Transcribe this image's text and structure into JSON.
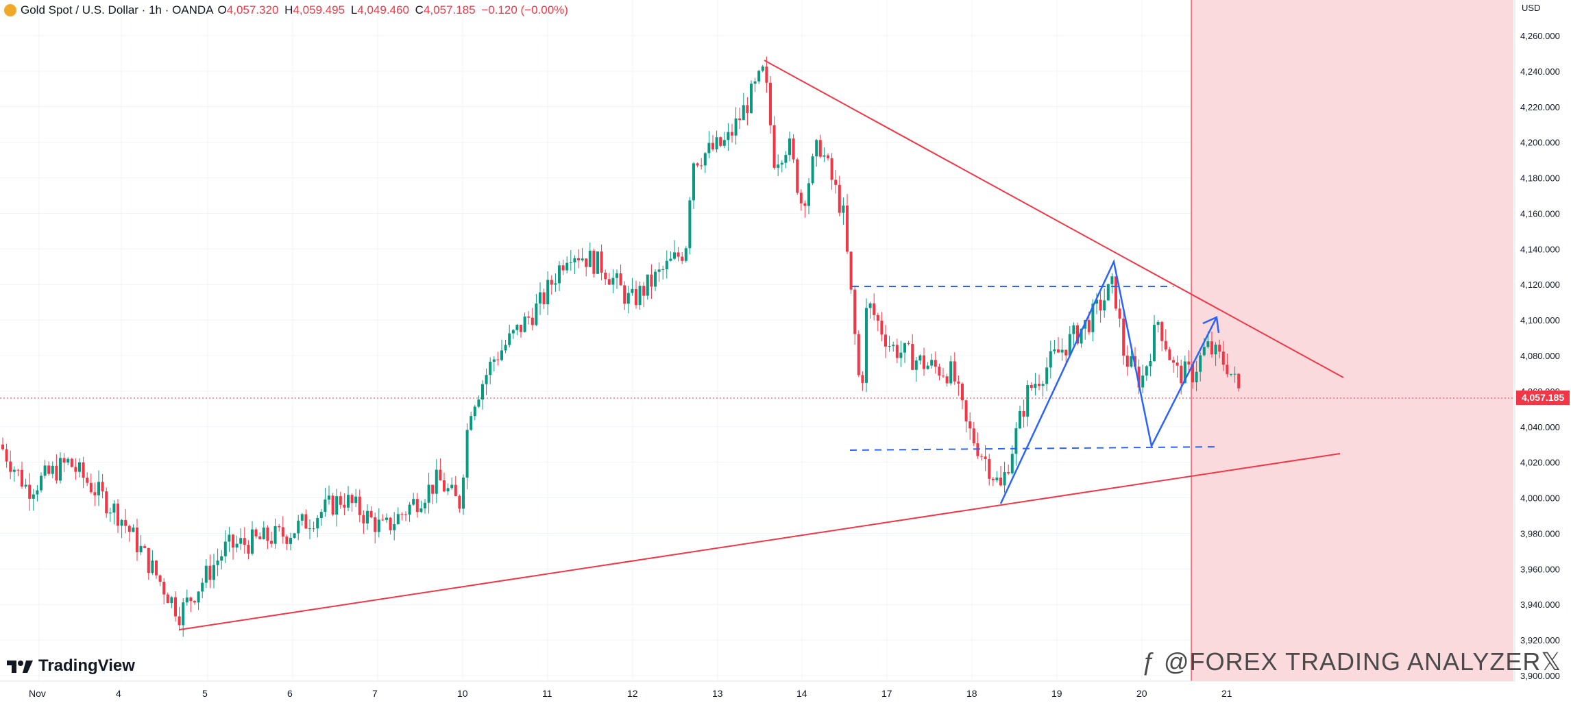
{
  "header": {
    "title": "Gold Spot / U.S. Dollar · 1h · OANDA",
    "ohlc": [
      {
        "key": "O",
        "value": "4,057.320"
      },
      {
        "key": "H",
        "value": "4,059.495"
      },
      {
        "key": "L",
        "value": "4,049.460"
      },
      {
        "key": "C",
        "value": "4,057.185"
      }
    ],
    "change": "−0.120 (−0.00%)"
  },
  "axis": {
    "currency": "USD",
    "price_labels": [
      "4,260.000",
      "4,240.000",
      "4,220.000",
      "4,200.000",
      "4,180.000",
      "4,160.000",
      "4,140.000",
      "4,120.000",
      "4,100.000",
      "4,080.000",
      "4,060.000",
      "4,040.000",
      "4,020.000",
      "4,000.000",
      "3,980.000",
      "3,960.000",
      "3,940.000",
      "3,920.000",
      "3,900.000"
    ],
    "time_labels": [
      "Nov",
      "4",
      "5",
      "6",
      "7",
      "10",
      "11",
      "12",
      "13",
      "14",
      "17",
      "18",
      "19",
      "20",
      "21"
    ]
  },
  "last_price": "4,057.185",
  "branding": {
    "logo_text": "TradingView",
    "watermark": "@FOREX TRADING ANALYZER"
  },
  "colors": {
    "bull": "#089981",
    "bear": "#f23645",
    "trendline": "#f23645",
    "pattern": "#2962ff",
    "zone": "#fbdadd"
  },
  "chart_data": {
    "type": "candlestick",
    "symbol": "XAUUSD",
    "interval": "1h",
    "y_range": [
      3900,
      4270
    ],
    "x_categories": [
      "Nov",
      "4",
      "5",
      "6",
      "7",
      "10",
      "11",
      "12",
      "13",
      "14",
      "17",
      "18",
      "19",
      "20",
      "21"
    ],
    "daily_path": [
      {
        "day": "Nov",
        "open": 4030,
        "high": 4035,
        "low": 3962,
        "close": 4012
      },
      {
        "day": "4",
        "open": 4012,
        "high": 4030,
        "low": 3965,
        "close": 3988
      },
      {
        "day": "5",
        "open": 3988,
        "high": 3995,
        "low": 3926,
        "close": 3975
      },
      {
        "day": "6",
        "open": 3975,
        "high": 3995,
        "low": 3965,
        "close": 3985
      },
      {
        "day": "7",
        "open": 3985,
        "high": 4020,
        "low": 3968,
        "close": 4010
      },
      {
        "day": "10",
        "open": 4010,
        "high": 4095,
        "low": 3985,
        "close": 4090
      },
      {
        "day": "11",
        "open": 4090,
        "high": 4150,
        "low": 4080,
        "close": 4135
      },
      {
        "day": "12",
        "open": 4135,
        "high": 4148,
        "low": 4098,
        "close": 4130
      },
      {
        "day": "13",
        "open": 4130,
        "high": 4245,
        "low": 4125,
        "close": 4225
      },
      {
        "day": "14",
        "open": 4225,
        "high": 4230,
        "low": 4145,
        "close": 4170
      },
      {
        "day": "17",
        "open": 4170,
        "high": 4120,
        "low": 4030,
        "close": 4075
      },
      {
        "day": "18",
        "open": 4075,
        "high": 4090,
        "low": 4000,
        "close": 4030
      },
      {
        "day": "19",
        "open": 4030,
        "high": 4130,
        "low": 4025,
        "close": 4112
      },
      {
        "day": "20",
        "open": 4112,
        "high": 4118,
        "low": 4038,
        "close": 4070
      },
      {
        "day": "21",
        "open": 4070,
        "high": 4105,
        "low": 4045,
        "close": 4057
      }
    ],
    "trendlines": [
      {
        "name": "descending resistance",
        "from": {
          "day": "13",
          "price": 4246
        },
        "to": {
          "day": "21+",
          "price": 4068
        }
      },
      {
        "name": "ascending support",
        "from": {
          "day": "5",
          "price": 3927
        },
        "to": {
          "day": "21+",
          "price": 4025
        }
      }
    ],
    "range_levels": [
      4120,
      4028
    ],
    "last_price": 4057.185
  }
}
